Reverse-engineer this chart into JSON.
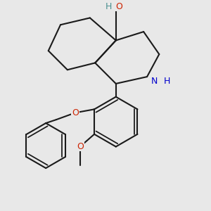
{
  "background_color": "#e8e8e8",
  "bond_color": "#1a1a1a",
  "bond_width": 1.5,
  "figsize": [
    3.0,
    3.0
  ],
  "dpi": 100,
  "xlim": [
    -2.5,
    2.5
  ],
  "ylim": [
    -3.5,
    2.5
  ]
}
